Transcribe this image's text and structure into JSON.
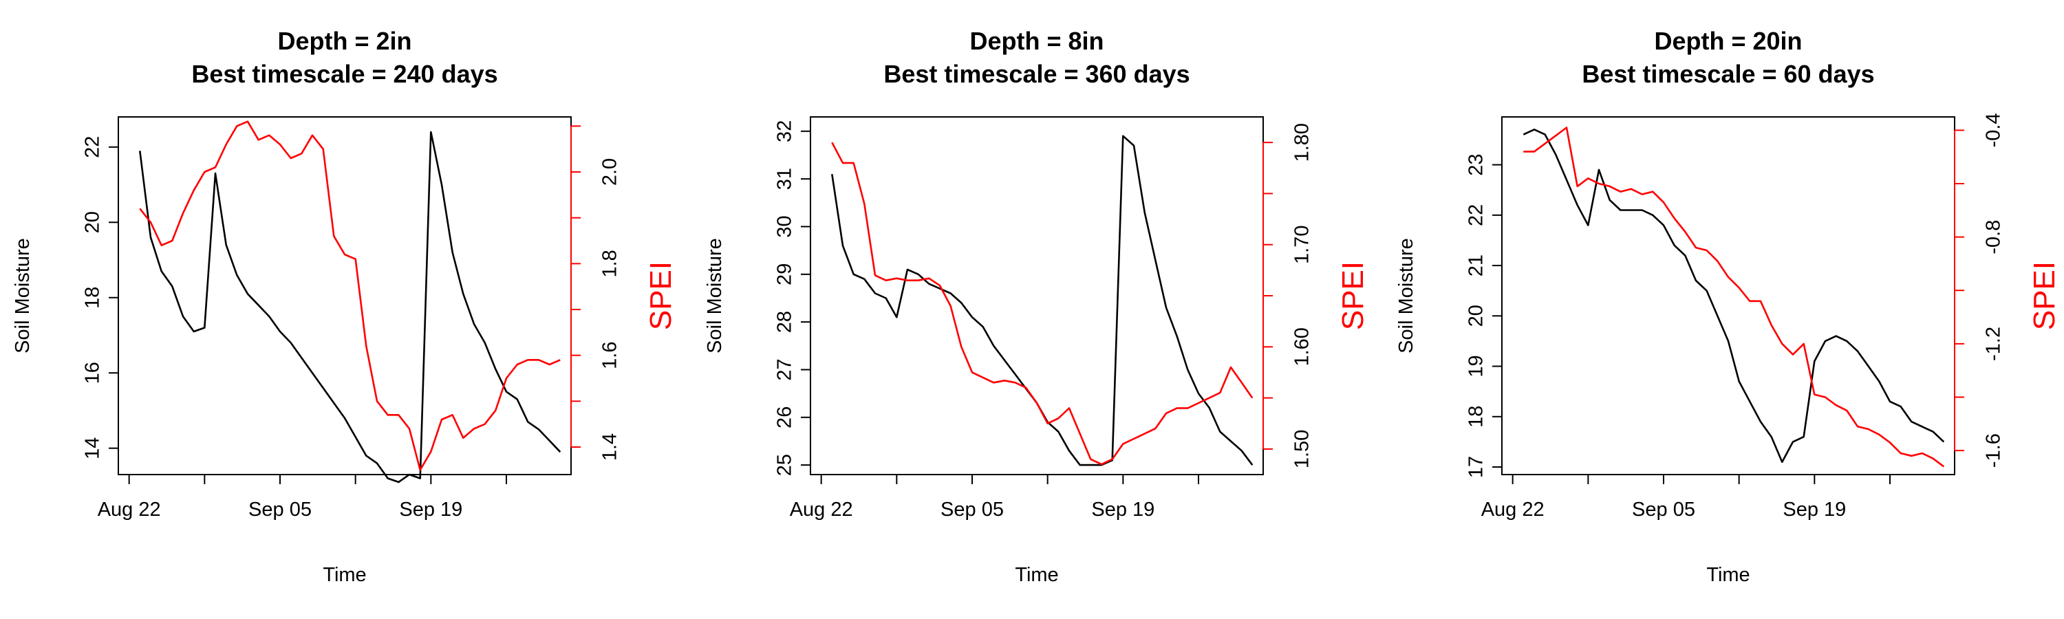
{
  "figure": {
    "colors": {
      "soil": "#000000",
      "spei": "#ff0000",
      "axis": "#000000"
    },
    "x_ticks": [
      {
        "date": "2024-08-22",
        "label": "Aug 22"
      },
      {
        "date": "2024-08-29",
        "label": ""
      },
      {
        "date": "2024-09-05",
        "label": "Sep 05"
      },
      {
        "date": "2024-09-12",
        "label": ""
      },
      {
        "date": "2024-09-19",
        "label": "Sep 19"
      },
      {
        "date": "2024-09-26",
        "label": ""
      }
    ],
    "x_range": [
      "2024-08-21",
      "2024-10-02"
    ]
  },
  "chart_data": [
    {
      "type": "line",
      "title": "Depth = 2in",
      "subtitle": "Best timescale = 240 days",
      "xlabel": "Time",
      "ylabel": "Soil Moisture",
      "y2label": "SPEI",
      "ylim": [
        13.3,
        22.8
      ],
      "y_ticks": [
        14,
        16,
        18,
        20,
        22
      ],
      "y2lim": [
        1.34,
        2.12
      ],
      "y2_ticks": [
        1.4,
        1.5,
        1.6,
        1.7,
        1.8,
        1.9,
        2.0,
        2.1
      ],
      "y2_tick_labels": [
        "1.4",
        "",
        "1.6",
        "",
        "1.8",
        "",
        "2.0",
        ""
      ],
      "series": [
        {
          "name": "Soil Moisture",
          "axis": "left",
          "x": [
            "2024-08-23",
            "2024-08-24",
            "2024-08-25",
            "2024-08-26",
            "2024-08-27",
            "2024-08-28",
            "2024-08-29",
            "2024-08-30",
            "2024-08-31",
            "2024-09-01",
            "2024-09-02",
            "2024-09-03",
            "2024-09-04",
            "2024-09-05",
            "2024-09-06",
            "2024-09-07",
            "2024-09-08",
            "2024-09-09",
            "2024-09-10",
            "2024-09-11",
            "2024-09-12",
            "2024-09-13",
            "2024-09-14",
            "2024-09-15",
            "2024-09-16",
            "2024-09-17",
            "2024-09-18",
            "2024-09-19",
            "2024-09-20",
            "2024-09-21",
            "2024-09-22",
            "2024-09-23",
            "2024-09-24",
            "2024-09-25",
            "2024-09-26",
            "2024-09-27",
            "2024-09-28",
            "2024-09-29",
            "2024-09-30",
            "2024-10-01"
          ],
          "values": [
            21.9,
            19.6,
            18.7,
            18.3,
            17.5,
            17.1,
            17.2,
            21.3,
            19.4,
            18.6,
            18.1,
            17.8,
            17.5,
            17.1,
            16.8,
            16.4,
            16.0,
            15.6,
            15.2,
            14.8,
            14.3,
            13.8,
            13.6,
            13.2,
            13.1,
            13.3,
            13.2,
            22.4,
            21.0,
            19.2,
            18.1,
            17.3,
            16.8,
            16.1,
            15.5,
            15.3,
            14.7,
            14.5,
            14.2,
            13.9
          ]
        },
        {
          "name": "SPEI",
          "axis": "right",
          "x": [
            "2024-08-23",
            "2024-08-24",
            "2024-08-25",
            "2024-08-26",
            "2024-08-27",
            "2024-08-28",
            "2024-08-29",
            "2024-08-30",
            "2024-08-31",
            "2024-09-01",
            "2024-09-02",
            "2024-09-03",
            "2024-09-04",
            "2024-09-05",
            "2024-09-06",
            "2024-09-07",
            "2024-09-08",
            "2024-09-09",
            "2024-09-10",
            "2024-09-11",
            "2024-09-12",
            "2024-09-13",
            "2024-09-14",
            "2024-09-15",
            "2024-09-16",
            "2024-09-17",
            "2024-09-18",
            "2024-09-19",
            "2024-09-20",
            "2024-09-21",
            "2024-09-22",
            "2024-09-23",
            "2024-09-24",
            "2024-09-25",
            "2024-09-26",
            "2024-09-27",
            "2024-09-28",
            "2024-09-29",
            "2024-09-30",
            "2024-10-01"
          ],
          "values": [
            1.92,
            1.89,
            1.84,
            1.85,
            1.91,
            1.96,
            2.0,
            2.01,
            2.06,
            2.1,
            2.11,
            2.07,
            2.08,
            2.06,
            2.03,
            2.04,
            2.08,
            2.05,
            1.86,
            1.82,
            1.81,
            1.62,
            1.5,
            1.47,
            1.47,
            1.44,
            1.35,
            1.39,
            1.46,
            1.47,
            1.42,
            1.44,
            1.45,
            1.48,
            1.55,
            1.58,
            1.59,
            1.59,
            1.58,
            1.59
          ]
        }
      ]
    },
    {
      "type": "line",
      "title": "Depth = 8in",
      "subtitle": "Best timescale = 360 days",
      "xlabel": "Time",
      "ylabel": "Soil Moisture",
      "y2label": "SPEI",
      "ylim": [
        24.8,
        32.3
      ],
      "y_ticks": [
        25,
        26,
        27,
        28,
        29,
        30,
        31,
        32
      ],
      "y2lim": [
        1.475,
        1.825
      ],
      "y2_ticks": [
        1.5,
        1.55,
        1.6,
        1.65,
        1.7,
        1.75,
        1.8
      ],
      "y2_tick_labels": [
        "1.50",
        "",
        "1.60",
        "",
        "1.70",
        "",
        "1.80"
      ],
      "series": [
        {
          "name": "Soil Moisture",
          "axis": "left",
          "x": [
            "2024-08-23",
            "2024-08-24",
            "2024-08-25",
            "2024-08-26",
            "2024-08-27",
            "2024-08-28",
            "2024-08-29",
            "2024-08-30",
            "2024-08-31",
            "2024-09-01",
            "2024-09-02",
            "2024-09-03",
            "2024-09-04",
            "2024-09-05",
            "2024-09-06",
            "2024-09-07",
            "2024-09-08",
            "2024-09-09",
            "2024-09-10",
            "2024-09-11",
            "2024-09-12",
            "2024-09-13",
            "2024-09-14",
            "2024-09-15",
            "2024-09-16",
            "2024-09-17",
            "2024-09-18",
            "2024-09-19",
            "2024-09-20",
            "2024-09-21",
            "2024-09-22",
            "2024-09-23",
            "2024-09-24",
            "2024-09-25",
            "2024-09-26",
            "2024-09-27",
            "2024-09-28",
            "2024-09-29",
            "2024-09-30",
            "2024-10-01"
          ],
          "values": [
            31.1,
            29.6,
            29.0,
            28.9,
            28.6,
            28.5,
            28.1,
            29.1,
            29.0,
            28.8,
            28.7,
            28.6,
            28.4,
            28.1,
            27.9,
            27.5,
            27.2,
            26.9,
            26.6,
            26.3,
            25.9,
            25.7,
            25.3,
            25.0,
            25.0,
            25.0,
            25.1,
            31.9,
            31.7,
            30.3,
            29.3,
            28.3,
            27.7,
            27.0,
            26.5,
            26.2,
            25.7,
            25.5,
            25.3,
            25.0
          ]
        },
        {
          "name": "SPEI",
          "axis": "right",
          "x": [
            "2024-08-23",
            "2024-08-24",
            "2024-08-25",
            "2024-08-26",
            "2024-08-27",
            "2024-08-28",
            "2024-08-29",
            "2024-08-30",
            "2024-08-31",
            "2024-09-01",
            "2024-09-02",
            "2024-09-03",
            "2024-09-04",
            "2024-09-05",
            "2024-09-06",
            "2024-09-07",
            "2024-09-08",
            "2024-09-09",
            "2024-09-10",
            "2024-09-11",
            "2024-09-12",
            "2024-09-13",
            "2024-09-14",
            "2024-09-15",
            "2024-09-16",
            "2024-09-17",
            "2024-09-18",
            "2024-09-19",
            "2024-09-20",
            "2024-09-21",
            "2024-09-22",
            "2024-09-23",
            "2024-09-24",
            "2024-09-25",
            "2024-09-26",
            "2024-09-27",
            "2024-09-28",
            "2024-09-29",
            "2024-09-30",
            "2024-10-01"
          ],
          "values": [
            1.8,
            1.78,
            1.78,
            1.74,
            1.67,
            1.665,
            1.667,
            1.665,
            1.665,
            1.667,
            1.66,
            1.64,
            1.6,
            1.575,
            1.57,
            1.565,
            1.567,
            1.565,
            1.56,
            1.545,
            1.525,
            1.53,
            1.54,
            1.515,
            1.49,
            1.485,
            1.49,
            1.505,
            1.51,
            1.515,
            1.52,
            1.535,
            1.54,
            1.54,
            1.545,
            1.55,
            1.555,
            1.58,
            1.565,
            1.55
          ]
        }
      ]
    },
    {
      "type": "line",
      "title": "Depth = 20in",
      "subtitle": "Best timescale = 60 days",
      "xlabel": "Time",
      "ylabel": "Soil Moisture",
      "y2label": "SPEI",
      "ylim": [
        16.85,
        23.95
      ],
      "y_ticks": [
        17,
        18,
        19,
        20,
        21,
        22,
        23
      ],
      "y2lim": [
        -1.69,
        -0.35
      ],
      "y2_ticks": [
        -1.6,
        -1.4,
        -1.2,
        -1.0,
        -0.8,
        -0.6,
        -0.4
      ],
      "y2_tick_labels": [
        "-1.6",
        "",
        "-1.2",
        "",
        "-0.8",
        "",
        "-0.4"
      ],
      "series": [
        {
          "name": "Soil Moisture",
          "axis": "left",
          "x": [
            "2024-08-23",
            "2024-08-24",
            "2024-08-25",
            "2024-08-26",
            "2024-08-27",
            "2024-08-28",
            "2024-08-29",
            "2024-08-30",
            "2024-08-31",
            "2024-09-01",
            "2024-09-02",
            "2024-09-03",
            "2024-09-04",
            "2024-09-05",
            "2024-09-06",
            "2024-09-07",
            "2024-09-08",
            "2024-09-09",
            "2024-09-10",
            "2024-09-11",
            "2024-09-12",
            "2024-09-13",
            "2024-09-14",
            "2024-09-15",
            "2024-09-16",
            "2024-09-17",
            "2024-09-18",
            "2024-09-19",
            "2024-09-20",
            "2024-09-21",
            "2024-09-22",
            "2024-09-23",
            "2024-09-24",
            "2024-09-25",
            "2024-09-26",
            "2024-09-27",
            "2024-09-28",
            "2024-09-29",
            "2024-09-30",
            "2024-10-01"
          ],
          "values": [
            23.6,
            23.7,
            23.6,
            23.2,
            22.7,
            22.2,
            21.8,
            22.9,
            22.3,
            22.1,
            22.1,
            22.1,
            22.0,
            21.8,
            21.4,
            21.2,
            20.7,
            20.5,
            20.0,
            19.5,
            18.7,
            18.3,
            17.9,
            17.6,
            17.1,
            17.5,
            17.6,
            19.1,
            19.5,
            19.6,
            19.5,
            19.3,
            19.0,
            18.7,
            18.3,
            18.2,
            17.9,
            17.8,
            17.7,
            17.5
          ]
        },
        {
          "name": "SPEI",
          "axis": "right",
          "x": [
            "2024-08-23",
            "2024-08-24",
            "2024-08-25",
            "2024-08-26",
            "2024-08-27",
            "2024-08-28",
            "2024-08-29",
            "2024-08-30",
            "2024-08-31",
            "2024-09-01",
            "2024-09-02",
            "2024-09-03",
            "2024-09-04",
            "2024-09-05",
            "2024-09-06",
            "2024-09-07",
            "2024-09-08",
            "2024-09-09",
            "2024-09-10",
            "2024-09-11",
            "2024-09-12",
            "2024-09-13",
            "2024-09-14",
            "2024-09-15",
            "2024-09-16",
            "2024-09-17",
            "2024-09-18",
            "2024-09-19",
            "2024-09-20",
            "2024-09-21",
            "2024-09-22",
            "2024-09-23",
            "2024-09-24",
            "2024-09-25",
            "2024-09-26",
            "2024-09-27",
            "2024-09-28",
            "2024-09-29",
            "2024-09-30",
            "2024-10-01"
          ],
          "values": [
            -0.48,
            -0.48,
            -0.45,
            -0.42,
            -0.39,
            -0.61,
            -0.58,
            -0.6,
            -0.61,
            -0.63,
            -0.62,
            -0.64,
            -0.63,
            -0.67,
            -0.73,
            -0.78,
            -0.84,
            -0.85,
            -0.89,
            -0.95,
            -0.99,
            -1.04,
            -1.04,
            -1.13,
            -1.2,
            -1.24,
            -1.2,
            -1.39,
            -1.4,
            -1.43,
            -1.45,
            -1.51,
            -1.52,
            -1.54,
            -1.57,
            -1.61,
            -1.62,
            -1.61,
            -1.63,
            -1.66
          ]
        }
      ]
    }
  ]
}
